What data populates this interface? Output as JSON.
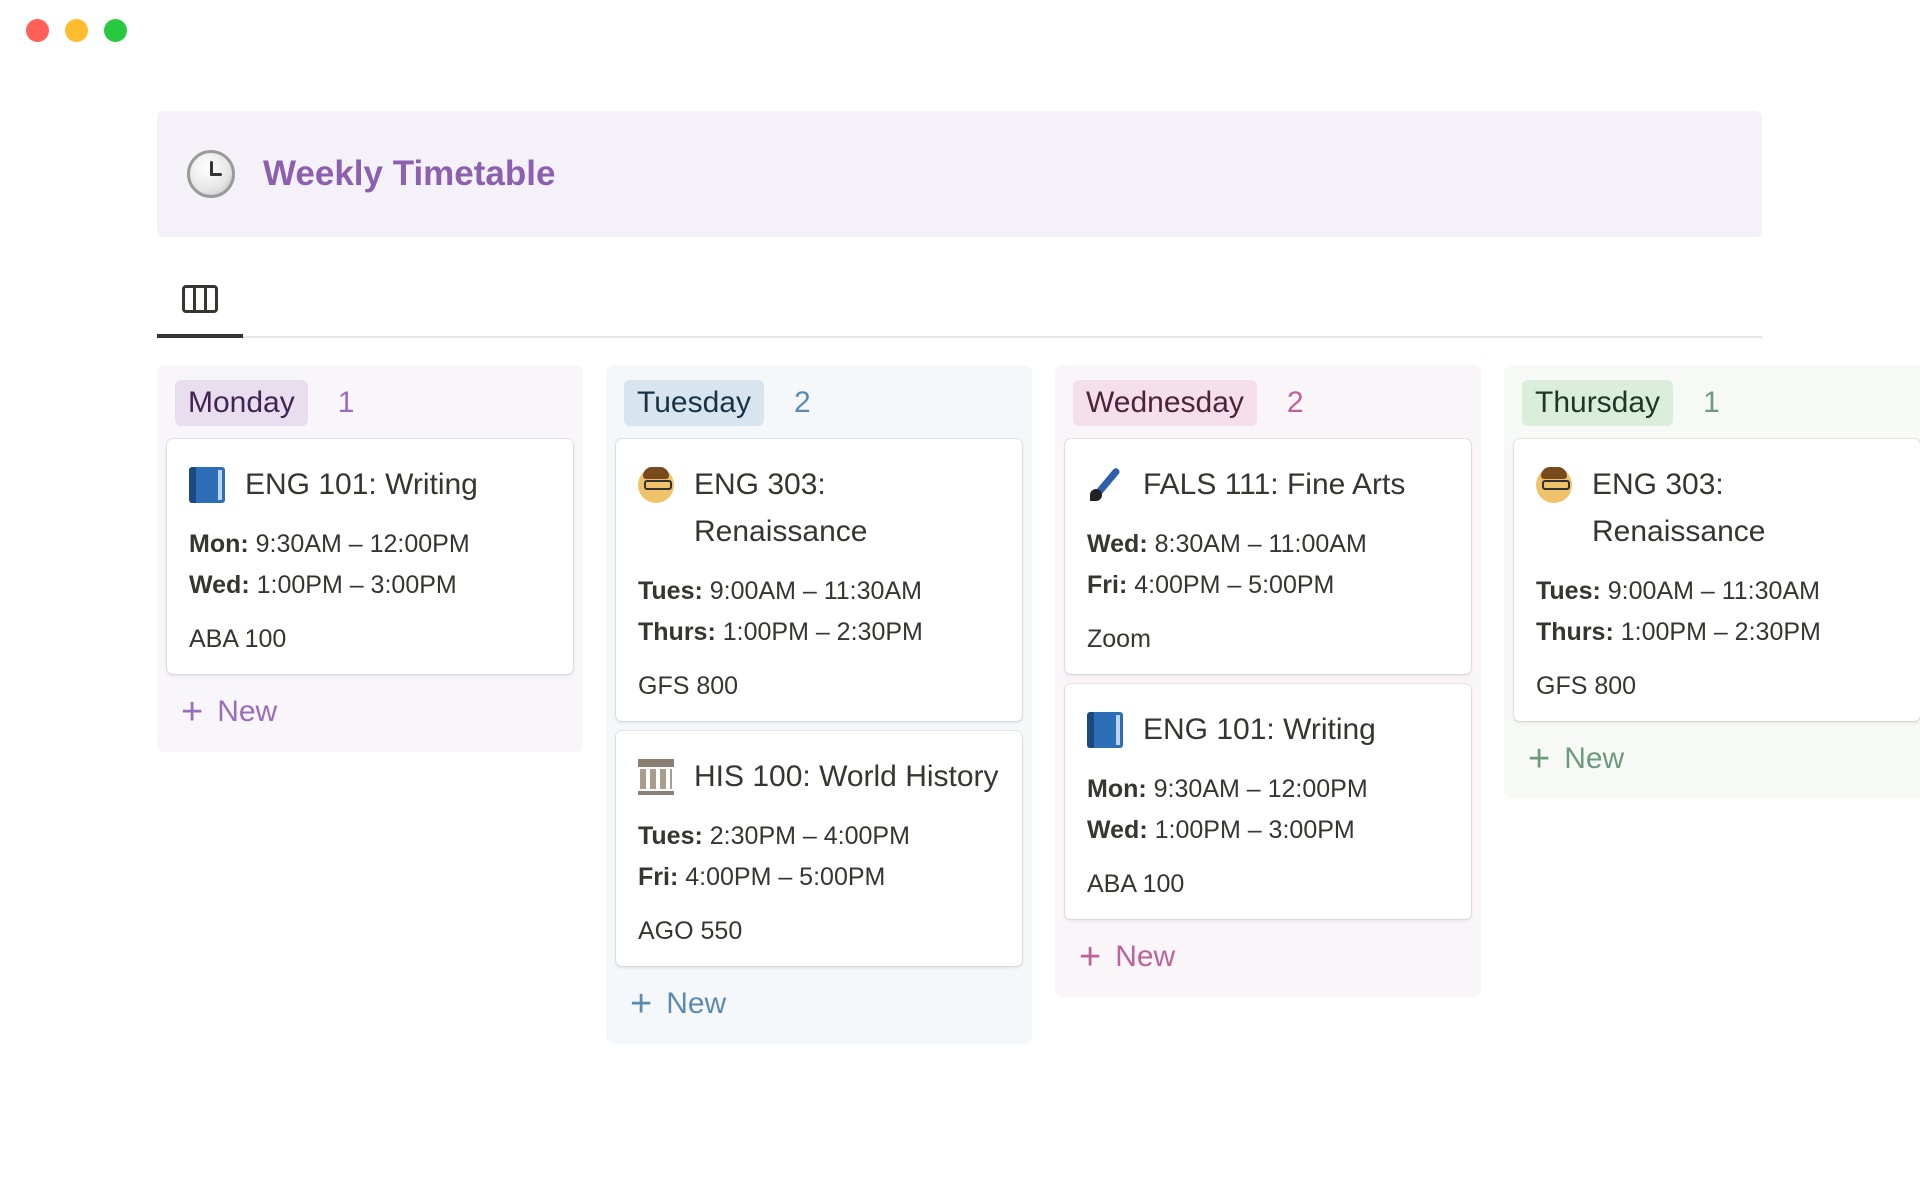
{
  "page": {
    "title": "Weekly Timetable",
    "icon": "clock-icon",
    "view_icon": "board-view-icon"
  },
  "columns": [
    {
      "day": "Monday",
      "count": "1",
      "accent": "#9a6dbb",
      "new_label": "New",
      "cards": [
        {
          "icon": "blue-book-icon",
          "title": "ENG 101: Writing",
          "times": [
            {
              "day": "Mon:",
              "range": "9:30AM – 12:00PM"
            },
            {
              "day": "Wed:",
              "range": "1:00PM – 3:00PM"
            }
          ],
          "room": "ABA 100"
        }
      ]
    },
    {
      "day": "Tuesday",
      "count": "2",
      "accent": "#5b8bb0",
      "new_label": "New",
      "cards": [
        {
          "icon": "teacher-icon",
          "title": "ENG 303: Renaissance",
          "times": [
            {
              "day": "Tues:",
              "range": "9:00AM – 11:30AM"
            },
            {
              "day": "Thurs:",
              "range": "1:00PM – 2:30PM"
            }
          ],
          "room": "GFS 800"
        },
        {
          "icon": "classical-building-icon",
          "title": "HIS 100: World History",
          "times": [
            {
              "day": "Tues:",
              "range": "2:30PM – 4:00PM"
            },
            {
              "day": "Fri:",
              "range": "4:00PM – 5:00PM"
            }
          ],
          "room": "AGO 550"
        }
      ]
    },
    {
      "day": "Wednesday",
      "count": "2",
      "accent": "#c0629a",
      "new_label": "New",
      "cards": [
        {
          "icon": "paintbrush-icon",
          "title": "FALS 111: Fine Arts",
          "times": [
            {
              "day": "Wed:",
              "range": "8:30AM – 11:00AM"
            },
            {
              "day": "Fri:",
              "range": "4:00PM – 5:00PM"
            }
          ],
          "room": "Zoom"
        },
        {
          "icon": "blue-book-icon",
          "title": "ENG 101: Writing",
          "times": [
            {
              "day": "Mon:",
              "range": "9:30AM – 12:00PM"
            },
            {
              "day": "Wed:",
              "range": "1:00PM – 3:00PM"
            }
          ],
          "room": "ABA 100"
        }
      ]
    },
    {
      "day": "Thursday",
      "count": "1",
      "accent": "#6c9b7d",
      "new_label": "New",
      "cards": [
        {
          "icon": "teacher-icon",
          "title": "ENG 303: Renaissance",
          "times": [
            {
              "day": "Tues:",
              "range": "9:00AM – 11:30AM"
            },
            {
              "day": "Thurs:",
              "range": "1:00PM – 2:30PM"
            }
          ],
          "room": "GFS 800"
        }
      ]
    }
  ]
}
